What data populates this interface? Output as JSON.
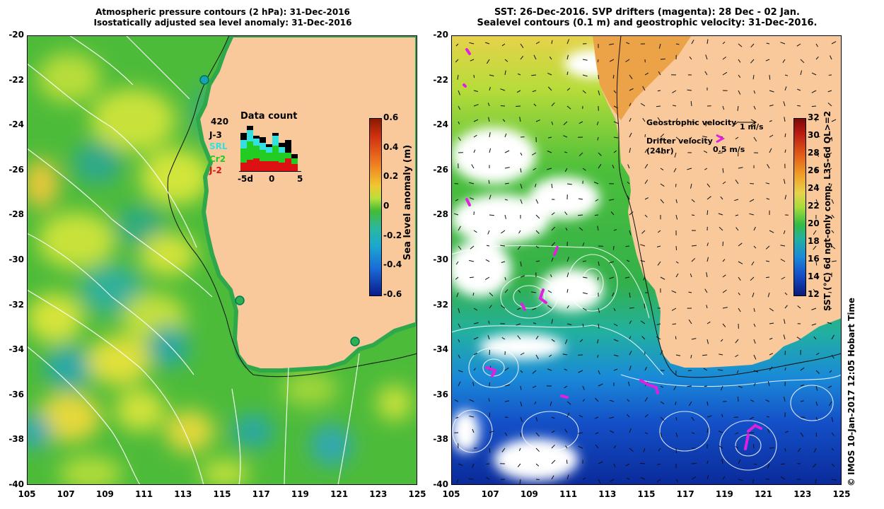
{
  "left_panel": {
    "title_line1": "Atmospheric pressure contours (2 hPa): 31-Dec-2016",
    "title_line2": "Isostatically adjusted sea level anomaly: 31-Dec-2016",
    "colorbar": {
      "label": "Sea level anomaly (m)",
      "ticks": [
        "0.6",
        "0.4",
        "0.2",
        "0",
        "-0.2",
        "-0.4",
        "-0.6"
      ]
    },
    "data_count": {
      "title": "Data count",
      "total": "420",
      "missions": [
        {
          "name": "J-3",
          "color": "#000000"
        },
        {
          "name": "SRL",
          "color": "#33e0e0"
        },
        {
          "name": "Cr2",
          "color": "#22cc22"
        },
        {
          "name": "J-2",
          "color": "#dd1111"
        }
      ],
      "xticks": [
        "-5d",
        "0",
        "5"
      ]
    }
  },
  "right_panel": {
    "title_line1": "SST: 26-Dec-2016. SVP drifters (magenta): 28 Dec - 02 Jan.",
    "title_line2": "Sealevel contours (0.1 m) and geostrophic velocity: 31-Dec-2016.",
    "colorbar": {
      "label": "SST (°C) 6d ngt-only comp. L3S-6d QL>=2",
      "ticks": [
        "32",
        "30",
        "28",
        "26",
        "24",
        "22",
        "20",
        "18",
        "16",
        "14",
        "12"
      ]
    },
    "legend": {
      "geostrophic_label": "Geostrophic velocity",
      "geostrophic_scale": "1 m/s",
      "drifter_label_1": "Drifter velocity",
      "drifter_label_2": "(24hr)",
      "drifter_scale": "0.5 m/s"
    }
  },
  "axes": {
    "lat_ticks": [
      "-20",
      "-22",
      "-24",
      "-26",
      "-28",
      "-30",
      "-32",
      "-34",
      "-36",
      "-38",
      "-40"
    ],
    "lon_ticks": [
      "105",
      "107",
      "109",
      "111",
      "113",
      "115",
      "117",
      "119",
      "121",
      "123",
      "125"
    ]
  },
  "credit": "© IMOS 10-Jan-2017 12:05 Hobart Time",
  "colors": {
    "land": "#f9c99c",
    "sla_ocean": "#44bb33",
    "sst_cold": "#0a2f9a",
    "drifter": "#e020e0"
  }
}
